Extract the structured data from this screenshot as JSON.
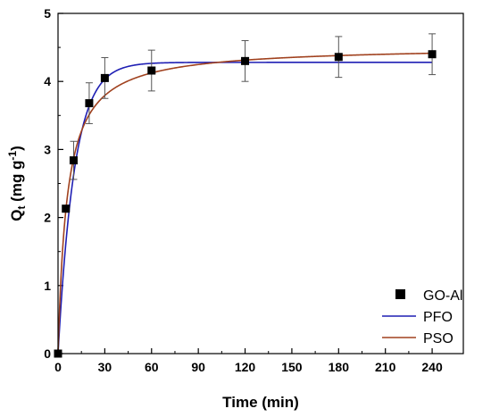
{
  "chart_data": {
    "type": "scatter",
    "xlabel": "Time (min)",
    "ylabel": {
      "main": "Q",
      "sub": "t",
      "unit": " (mg g",
      "sup": "-1",
      "close": ")"
    },
    "xlim": [
      0,
      260
    ],
    "ylim": [
      0,
      5
    ],
    "xticks": [
      0,
      30,
      60,
      90,
      120,
      150,
      180,
      210,
      240
    ],
    "yticks": [
      0,
      1,
      2,
      3,
      4,
      5
    ],
    "legend_position": "bottom-right",
    "series": [
      {
        "name": "GO-Al",
        "kind": "points",
        "color": "#000000",
        "x": [
          0,
          5,
          10,
          20,
          30,
          60,
          120,
          180,
          240
        ],
        "y": [
          0,
          2.13,
          2.84,
          3.68,
          4.05,
          4.16,
          4.3,
          4.36,
          4.4
        ],
        "yerr": [
          0,
          0,
          0.28,
          0.3,
          0.3,
          0.3,
          0.3,
          0.3,
          0.3
        ]
      },
      {
        "name": "PFO",
        "kind": "line",
        "color": "#1f1fb4",
        "model": "pfo",
        "qe": 4.28,
        "k": 0.095
      },
      {
        "name": "PSO",
        "kind": "line",
        "color": "#a0411e",
        "model": "pso",
        "qe": 4.52,
        "k": 0.0385
      }
    ]
  }
}
